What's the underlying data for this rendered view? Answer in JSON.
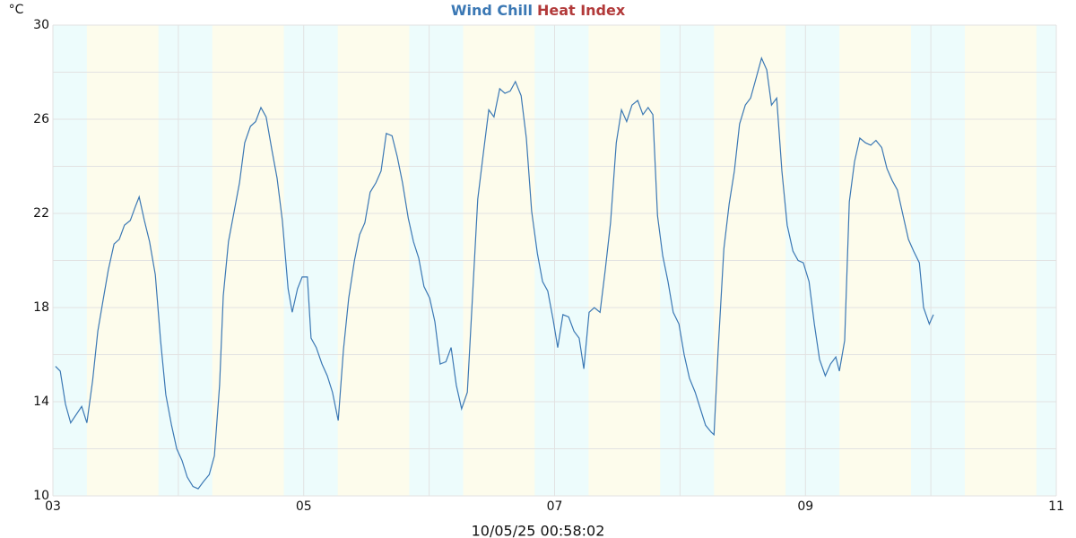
{
  "chart_data": {
    "type": "line",
    "y_label": "°C",
    "xlabel": "10/05/25 00:58:02",
    "xlim": [
      0,
      192
    ],
    "xticks": [
      {
        "value": 0,
        "label": "03"
      },
      {
        "value": 48,
        "label": "05"
      },
      {
        "value": 96,
        "label": "07"
      },
      {
        "value": 144,
        "label": "09"
      },
      {
        "value": 192,
        "label": "11"
      }
    ],
    "xminor": [
      24,
      72,
      120,
      168
    ],
    "ylim": [
      10,
      30
    ],
    "yticks": [
      10,
      14,
      18,
      22,
      26,
      30
    ],
    "yminor": [
      12,
      16,
      20,
      24,
      28
    ],
    "grid": true,
    "daylight_bands": [
      [
        6.5,
        20.2
      ],
      [
        30.5,
        44.2
      ],
      [
        54.5,
        68.2
      ],
      [
        78.5,
        92.2
      ],
      [
        102.5,
        116.2
      ],
      [
        126.5,
        140.2
      ],
      [
        150.5,
        164.2
      ],
      [
        174.5,
        188.2
      ]
    ],
    "night_color": "#edfcfc",
    "day_color": "#fdfcec",
    "x": [
      0.5,
      1.4,
      2.4,
      3.4,
      5.5,
      6.5,
      7.6,
      8.6,
      9.6,
      10.6,
      11.7,
      12.7,
      13.7,
      14.8,
      15.8,
      16.5,
      17.5,
      18.5,
      19.6,
      20.6,
      21.6,
      22.7,
      23.7,
      24.7,
      25.7,
      26.8,
      27.8,
      28.8,
      29.9,
      30.9,
      31.9,
      32.6,
      33.6,
      34.7,
      35.7,
      36.7,
      37.8,
      38.8,
      39.8,
      40.8,
      41.9,
      42.9,
      43.9,
      45.0,
      45.8,
      46.8,
      47.7,
      48.7,
      49.4,
      50.4,
      51.5,
      52.5,
      53.5,
      54.6,
      55.6,
      56.6,
      57.7,
      58.7,
      59.7,
      60.7,
      61.8,
      62.8,
      63.8,
      64.9,
      65.9,
      66.9,
      68.0,
      69.0,
      70.0,
      71.0,
      72.1,
      73.1,
      74.1,
      75.2,
      76.2,
      77.2,
      78.2,
      79.3,
      80.3,
      81.3,
      82.4,
      83.4,
      84.4,
      85.5,
      86.5,
      87.5,
      88.5,
      89.6,
      90.6,
      91.6,
      92.7,
      93.7,
      94.7,
      95.7,
      96.6,
      97.6,
      98.7,
      99.7,
      100.7,
      101.6,
      102.6,
      103.6,
      104.7,
      105.7,
      106.7,
      107.8,
      108.8,
      109.8,
      110.8,
      111.9,
      112.9,
      113.9,
      114.8,
      115.7,
      116.7,
      117.7,
      118.7,
      119.8,
      120.8,
      121.8,
      122.9,
      123.9,
      124.9,
      126.0,
      126.5,
      127.3,
      128.4,
      129.4,
      130.4,
      131.4,
      132.5,
      133.5,
      134.5,
      135.6,
      136.6,
      137.5,
      138.5,
      139.5,
      140.5,
      141.6,
      142.6,
      143.6,
      144.7,
      145.7,
      146.7,
      147.8,
      148.8,
      149.8,
      150.5,
      151.5,
      152.4,
      153.4,
      154.4,
      155.5,
      156.5,
      157.5,
      158.6,
      159.6,
      160.6,
      161.6,
      162.7,
      163.7,
      164.7,
      165.8,
      166.6,
      167.7,
      168.5
    ],
    "series": [
      {
        "name": "Wind Chill",
        "color": "#3b78b4",
        "values": [
          15.5,
          15.3,
          13.9,
          13.1,
          13.8,
          13.1,
          14.9,
          17.0,
          18.3,
          19.6,
          20.7,
          20.9,
          21.5,
          21.7,
          22.3,
          22.7,
          21.7,
          20.8,
          19.4,
          16.6,
          14.3,
          13.0,
          12.0,
          11.5,
          10.8,
          10.4,
          10.3,
          10.6,
          10.9,
          11.7,
          14.7,
          18.5,
          20.8,
          22.1,
          23.3,
          25.0,
          25.7,
          25.9,
          26.5,
          26.1,
          24.7,
          23.5,
          21.7,
          18.8,
          17.8,
          18.8,
          19.3,
          19.3,
          16.7,
          16.3,
          15.6,
          15.1,
          14.4,
          13.2,
          16.2,
          18.4,
          20.0,
          21.1,
          21.6,
          22.9,
          23.3,
          23.8,
          25.4,
          25.3,
          24.4,
          23.3,
          21.8,
          20.8,
          20.1,
          18.9,
          18.4,
          17.4,
          15.6,
          15.7,
          16.3,
          14.7,
          13.7,
          14.4,
          18.5,
          22.6,
          24.6,
          26.4,
          26.1,
          27.3,
          27.1,
          27.2,
          27.6,
          27.0,
          25.2,
          22.1,
          20.3,
          19.1,
          18.7,
          17.5,
          16.3,
          17.7,
          17.6,
          17.0,
          16.7,
          15.4,
          17.8,
          18.0,
          17.8,
          19.6,
          21.6,
          25.0,
          26.4,
          25.9,
          26.6,
          26.8,
          26.2,
          26.5,
          26.2,
          21.9,
          20.2,
          19.1,
          17.8,
          17.3,
          16.0,
          15.0,
          14.4,
          13.7,
          13.0,
          12.7,
          12.6,
          16.2,
          20.5,
          22.4,
          23.8,
          25.8,
          26.6,
          26.9,
          27.7,
          28.6,
          28.1,
          26.6,
          26.9,
          23.8,
          21.5,
          20.4,
          20.0,
          19.9,
          19.1,
          17.3,
          15.8,
          15.1,
          15.6,
          15.9,
          15.3,
          16.6,
          22.5,
          24.2,
          25.2,
          25.0,
          24.9,
          25.1,
          24.8,
          23.9,
          23.4,
          23.0,
          21.9,
          20.9,
          20.4,
          19.9,
          18.0,
          17.3,
          17.7
        ]
      }
    ],
    "legend_extra": [
      {
        "name": "Heat Index",
        "color": "#b23a3a"
      }
    ]
  }
}
